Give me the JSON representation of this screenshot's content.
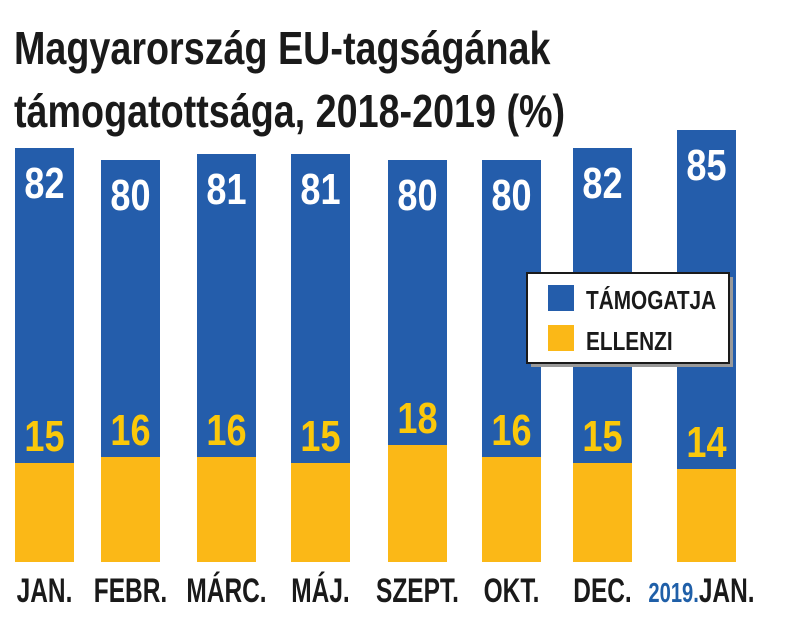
{
  "chart_data": {
    "type": "bar",
    "title": [
      "Magyarország EU-tagságának",
      "támogatottsága, 2018-2019 (%)"
    ],
    "categories": [
      "JAN.",
      "FEBR.",
      "MÁRC.",
      "MÁJ.",
      "SZEPT.",
      "OKT.",
      "DEC.",
      "JAN."
    ],
    "category_prefix": [
      "",
      "",
      "",
      "",
      "",
      "",
      "",
      "2019."
    ],
    "series": [
      {
        "name": "TÁMOGATJA",
        "color": "#245dab",
        "label_color": "#ffffff",
        "values": [
          82,
          80,
          81,
          81,
          80,
          80,
          82,
          85
        ]
      },
      {
        "name": "ELLENZI",
        "color": "#fbb817",
        "label_color": "#fbc80a",
        "values": [
          15,
          16,
          16,
          15,
          18,
          16,
          15,
          14
        ]
      }
    ],
    "year_label_color": "#1f5fa8",
    "legend": "right",
    "grid": false,
    "xlabel": "",
    "ylabel": ""
  }
}
